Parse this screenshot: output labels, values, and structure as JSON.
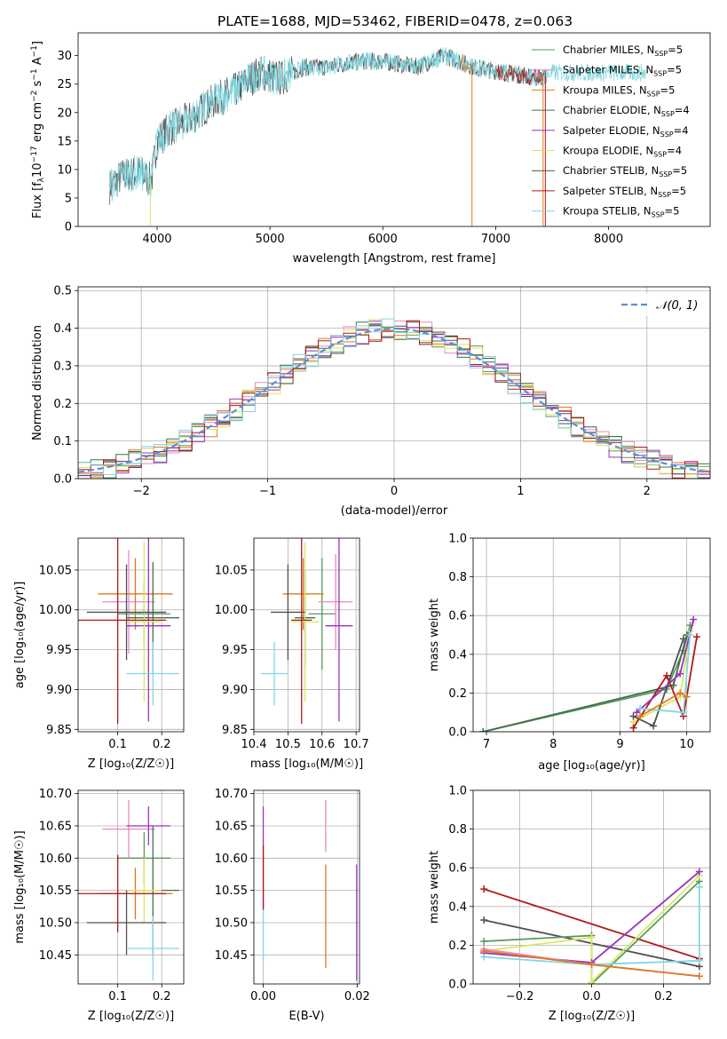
{
  "figure": {
    "title": "PLATE=1688, MJD=53462, FIBERID=0478, z=0.063"
  },
  "models": [
    {
      "name": "Chabrier MILES",
      "nssp": "5",
      "color": "#5a9a5a"
    },
    {
      "name": "Salpeter MILES",
      "nssp": "5",
      "color": "#e88ac0"
    },
    {
      "name": "Kroupa MILES",
      "nssp": "5",
      "color": "#e07820"
    },
    {
      "name": "Chabrier ELODIE",
      "nssp": "4",
      "color": "#3f6f4f"
    },
    {
      "name": "Salpeter ELODIE",
      "nssp": "4",
      "color": "#9b30c0"
    },
    {
      "name": "Kroupa ELODIE",
      "nssp": "4",
      "color": "#d8e860"
    },
    {
      "name": "Chabrier STELIB",
      "nssp": "5",
      "color": "#505050"
    },
    {
      "name": "Salpeter STELIB",
      "nssp": "5",
      "color": "#b01818"
    },
    {
      "name": "Kroupa STELIB",
      "nssp": "5",
      "color": "#80d8e0"
    }
  ],
  "chart_data": [
    {
      "id": "spectrum",
      "type": "line",
      "xlabel": "wavelength [Angstrom, rest frame]",
      "ylabel": "Flux [f_λ 10^-17 erg cm^-2 s^-1 A^-1]",
      "xlim": [
        3300,
        8900
      ],
      "ylim": [
        0,
        34
      ],
      "xticks": [
        4000,
        5000,
        6000,
        7000,
        8000
      ],
      "yticks": [
        0,
        5,
        10,
        15,
        20,
        25,
        30
      ],
      "legend_position": "top-right",
      "continuum": {
        "x": [
          3580,
          3700,
          3850,
          3950,
          4000,
          4100,
          4300,
          4500,
          4700,
          4900,
          5100,
          5300,
          5500,
          5800,
          6000,
          6300,
          6550,
          6800,
          7100,
          7400,
          7500
        ],
        "y": [
          7,
          9,
          9.5,
          8,
          15,
          17,
          19,
          22,
          24,
          27,
          26,
          28,
          28,
          29,
          29,
          28,
          30,
          28,
          27,
          26,
          27
        ]
      },
      "segments": [
        {
          "model": 6,
          "x_range": [
            3580,
            7450
          ]
        },
        {
          "model": 8,
          "x_range": [
            3580,
            8330
          ]
        },
        {
          "model": 7,
          "x_range": [
            7000,
            7430
          ]
        },
        {
          "model": 2,
          "x_range": [
            6700,
            6790
          ]
        }
      ]
    },
    {
      "id": "residuals",
      "type": "area",
      "xlabel": "(data-model)/error",
      "ylabel": "Normed distribution",
      "xlim": [
        -2.5,
        2.5
      ],
      "ylim": [
        0,
        0.51
      ],
      "xticks": [
        -2,
        -1,
        0,
        1,
        2
      ],
      "yticks": [
        0.0,
        0.1,
        0.2,
        0.3,
        0.4,
        0.5
      ],
      "grid": true,
      "normal_curve": {
        "label": "𝒩(0, 1)",
        "mu": 0,
        "sigma": 1,
        "color": "#5a8fd6"
      }
    },
    {
      "id": "age-vs-Z",
      "type": "scatter",
      "xlabel": "Z [log10(Z/Z☉)]",
      "ylabel": "age [log10(age/yr)]",
      "xlim": [
        0.01,
        0.25
      ],
      "ylim": [
        9.847,
        10.09
      ],
      "xticks": [
        0.1,
        0.2
      ],
      "yticks": [
        9.85,
        9.9,
        9.95,
        10.0,
        10.05
      ],
      "grid": true,
      "points": [
        {
          "model": 0,
          "x": 0.16,
          "xerr": 0.06,
          "y": 9.995,
          "yerr": 0.04
        },
        {
          "model": 1,
          "x": 0.125,
          "xerr": 0.06,
          "y": 10.01,
          "yerr": 0.065
        },
        {
          "model": 2,
          "x": 0.14,
          "xerr": 0.085,
          "y": 10.02,
          "yerr": 0.045
        },
        {
          "model": 3,
          "x": 0.18,
          "xerr": 0.06,
          "y": 9.99,
          "yerr": 0.07
        },
        {
          "model": 4,
          "x": 0.17,
          "xerr": 0.05,
          "y": 9.98,
          "yerr": 0.12
        },
        {
          "model": 5,
          "x": 0.16,
          "xerr": 0.04,
          "y": 9.985,
          "yerr": 0.1
        },
        {
          "model": 6,
          "x": 0.12,
          "xerr": 0.09,
          "y": 9.997,
          "yerr": 0.06
        },
        {
          "model": 7,
          "x": 0.1,
          "xerr": 0.11,
          "y": 9.987,
          "yerr": 0.13
        },
        {
          "model": 8,
          "x": 0.18,
          "xerr": 0.06,
          "y": 9.92,
          "yerr": 0.04
        }
      ]
    },
    {
      "id": "age-vs-mass",
      "type": "scatter",
      "xlabel": "mass [log10(M/M☉)]",
      "ylabel": "",
      "xlim": [
        10.4,
        10.71
      ],
      "ylim": [
        9.847,
        10.09
      ],
      "xticks": [
        10.4,
        10.5,
        10.6,
        10.7
      ],
      "yticks": [
        9.85,
        9.9,
        9.95,
        10.0,
        10.05
      ],
      "grid": true,
      "points": [
        {
          "model": 0,
          "x": 10.6,
          "xerr": 0.04,
          "y": 9.995,
          "yerr": 0.07
        },
        {
          "model": 1,
          "x": 10.64,
          "xerr": 0.05,
          "y": 10.01,
          "yerr": 0.06
        },
        {
          "model": 2,
          "x": 10.545,
          "xerr": 0.06,
          "y": 10.02,
          "yerr": 0.045
        },
        {
          "model": 3,
          "x": 10.55,
          "xerr": 0.03,
          "y": 9.99,
          "yerr": 0.06
        },
        {
          "model": 4,
          "x": 10.65,
          "xerr": 0.04,
          "y": 9.98,
          "yerr": 0.12
        },
        {
          "model": 5,
          "x": 10.55,
          "xerr": 0.04,
          "y": 9.985,
          "yerr": 0.1
        },
        {
          "model": 6,
          "x": 10.5,
          "xerr": 0.05,
          "y": 9.997,
          "yerr": 0.06
        },
        {
          "model": 7,
          "x": 10.54,
          "xerr": 0.03,
          "y": 9.987,
          "yerr": 0.13
        },
        {
          "model": 8,
          "x": 10.46,
          "xerr": 0.04,
          "y": 9.92,
          "yerr": 0.04
        }
      ]
    },
    {
      "id": "weight-vs-age",
      "type": "line",
      "xlabel": "age [log10(age/yr)]",
      "ylabel": "mass weight",
      "xlim": [
        6.8,
        10.35
      ],
      "ylim": [
        0,
        1.0
      ],
      "xticks": [
        7,
        8,
        9,
        10
      ],
      "yticks": [
        0.0,
        0.2,
        0.4,
        0.6,
        0.8,
        1.0
      ],
      "grid": true
    },
    {
      "id": "mass-vs-Z",
      "type": "scatter",
      "xlabel": "Z [log10(Z/Z☉)]",
      "ylabel": "mass [log10(M/M☉)]",
      "xlim": [
        0.01,
        0.25
      ],
      "ylim": [
        10.405,
        10.705
      ],
      "xticks": [
        0.1,
        0.2
      ],
      "yticks": [
        10.45,
        10.5,
        10.55,
        10.6,
        10.65,
        10.7
      ],
      "grid": true,
      "points": [
        {
          "model": 0,
          "x": 0.16,
          "xerr": 0.06,
          "y": 10.6,
          "yerr": 0.04
        },
        {
          "model": 1,
          "x": 0.125,
          "xerr": 0.06,
          "y": 10.645,
          "yerr": 0.045
        },
        {
          "model": 2,
          "x": 0.14,
          "xerr": 0.085,
          "y": 10.545,
          "yerr": 0.04
        },
        {
          "model": 3,
          "x": 0.18,
          "xerr": 0.06,
          "y": 10.55,
          "yerr": 0.1
        },
        {
          "model": 4,
          "x": 0.17,
          "xerr": 0.05,
          "y": 10.65,
          "yerr": 0.03
        },
        {
          "model": 5,
          "x": 0.16,
          "xerr": 0.04,
          "y": 10.55,
          "yerr": 0.05
        },
        {
          "model": 6,
          "x": 0.12,
          "xerr": 0.09,
          "y": 10.5,
          "yerr": 0.05
        },
        {
          "model": 7,
          "x": 0.1,
          "xerr": 0.11,
          "y": 10.545,
          "yerr": 0.06
        },
        {
          "model": 8,
          "x": 0.18,
          "xerr": 0.06,
          "y": 10.46,
          "yerr": 0.05
        }
      ]
    },
    {
      "id": "mass-vs-ebv",
      "type": "scatter",
      "xlabel": "E(B-V)",
      "ylabel": "",
      "xlim": [
        -0.002,
        0.0205
      ],
      "ylim": [
        10.405,
        10.705
      ],
      "xticks": [
        0.0,
        0.02
      ],
      "yticks": [
        10.45,
        10.5,
        10.55,
        10.6,
        10.65,
        10.7
      ],
      "grid": true,
      "points": [
        {
          "model": 4,
          "x": 0.0,
          "y": 10.6,
          "yerr": 0.08
        },
        {
          "model": 7,
          "x": 0.0,
          "y": 10.57,
          "yerr": 0.05
        },
        {
          "model": 8,
          "x": 0.0,
          "y": 10.48,
          "yerr": 0.04
        },
        {
          "model": 1,
          "x": 0.0133,
          "y": 10.65,
          "yerr": 0.04
        },
        {
          "model": 2,
          "x": 0.0133,
          "y": 10.51,
          "yerr": 0.08
        },
        {
          "model": 4,
          "x": 0.0199,
          "y": 10.5,
          "yerr": 0.09
        }
      ]
    },
    {
      "id": "weight-vs-Z",
      "type": "line",
      "xlabel": "Z [log10(Z/Z☉)]",
      "ylabel": "mass weight",
      "xlim": [
        -0.33,
        0.33
      ],
      "ylim": [
        0,
        1.0
      ],
      "xticks": [
        -0.2,
        0.0,
        0.2
      ],
      "yticks": [
        0.0,
        0.2,
        0.4,
        0.6,
        0.8,
        1.0
      ],
      "grid": true
    }
  ]
}
